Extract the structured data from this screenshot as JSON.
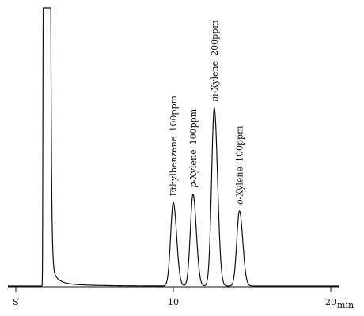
{
  "chart_data": {
    "type": "line",
    "title": "",
    "xlabel": "",
    "ylabel": "",
    "x_unit": "min",
    "xlim": [
      -0.5,
      20.5
    ],
    "ylim": [
      0,
      100
    ],
    "x_ticks": [
      {
        "value": 0,
        "label": "S"
      },
      {
        "value": 10,
        "label": "10"
      },
      {
        "value": 20,
        "label": "20",
        "unit": "min"
      }
    ],
    "solvent_peak": {
      "x": 1.8,
      "height": 100,
      "label": ""
    },
    "peaks": [
      {
        "name_prefix": "",
        "name": "Ethylbenzene",
        "concentration": "100ppm",
        "x": 10.0,
        "height": 30
      },
      {
        "name_prefix": "p-",
        "name": "Xylene",
        "concentration": "100ppm",
        "x": 11.25,
        "height": 33
      },
      {
        "name_prefix": "m-",
        "name": "Xylene",
        "concentration": "200ppm",
        "x": 12.6,
        "height": 64
      },
      {
        "name_prefix": "o-",
        "name": "Xylene",
        "concentration": "100ppm",
        "x": 14.2,
        "height": 27
      }
    ],
    "baseline": 0,
    "grid": false,
    "legend": "none"
  }
}
